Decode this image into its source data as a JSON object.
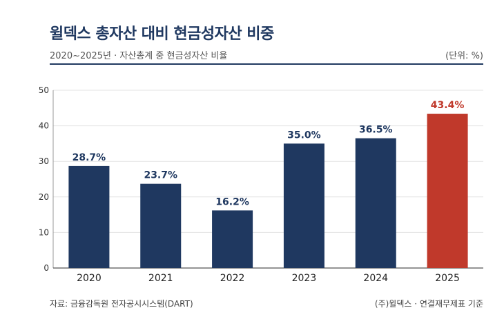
{
  "header": {
    "title": "윌덱스 총자산 대비 현금성자산 비중",
    "subtitle": "2020~2025년 · 자산총계 중 현금성자산 비율",
    "unit": "(단위: %)"
  },
  "footer": {
    "source": "자료: 금융감독원 전자공시시스템(DART)",
    "credit": "(주)윌덱스 · 연결재무제표 기준"
  },
  "colors": {
    "primary": "#1f3860",
    "highlight": "#c0392b",
    "grid": "#e3e3e3"
  },
  "chart_data": {
    "type": "bar",
    "categories": [
      "2020",
      "2021",
      "2022",
      "2023",
      "2024",
      "2025"
    ],
    "values": [
      28.7,
      23.7,
      16.2,
      35.0,
      36.5,
      43.4
    ],
    "value_labels": [
      "28.7%",
      "23.7%",
      "16.2%",
      "35.0%",
      "36.5%",
      "43.4%"
    ],
    "highlight_index": 5,
    "ylim": [
      0,
      50
    ],
    "yticks": [
      0,
      10,
      20,
      30,
      40,
      50
    ],
    "grid": true,
    "legend": "none"
  }
}
